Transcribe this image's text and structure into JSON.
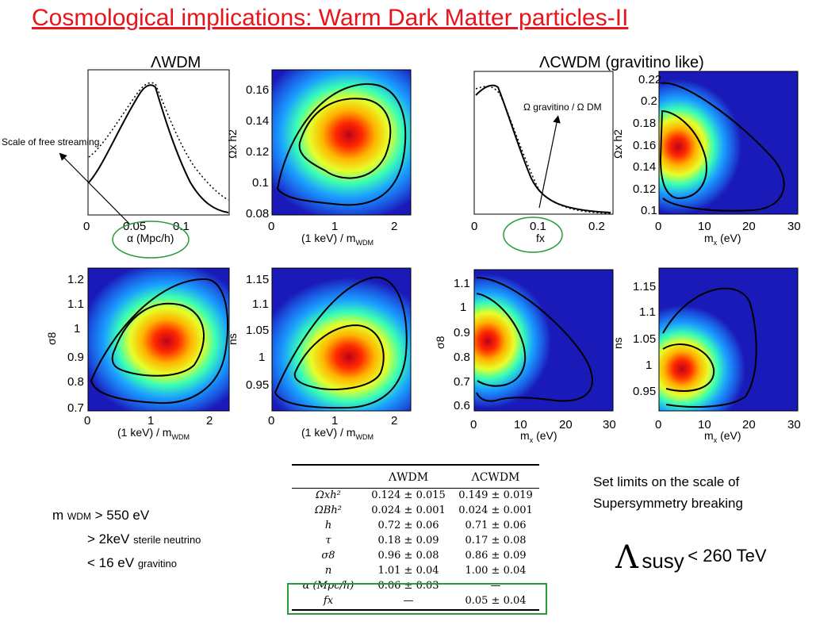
{
  "title": "Cosmological implications: Warm Dark Matter particles-II",
  "headers": {
    "lwdm": "ΛWDM",
    "lcwdm": "ΛCWDM (gravitino like)"
  },
  "annotations": {
    "free_streaming": "Scale of free streaming",
    "omega_ratio": "Ω gravitino / Ω DM"
  },
  "axes": {
    "alpha": "α (Mpc/h)",
    "kev_mwdm": "(1 keV) / m",
    "kev_mwdm_sub": "WDM",
    "omega_x_h2": "Ωx h2",
    "sigma8": "σ8",
    "ns": "ns",
    "fx": "fx",
    "mx": "m",
    "mx_sub": "x",
    "mx_unit": "(eV)"
  },
  "ticks": {
    "alpha_x": [
      "0",
      "0.05",
      "0.1"
    ],
    "kev_x": [
      "0",
      "1",
      "2"
    ],
    "omega_wdm_y": [
      "0.16",
      "0.14",
      "0.12",
      "0.1",
      "0.08"
    ],
    "sigma8_wdm_y": [
      "1.2",
      "1.1",
      "1",
      "0.9",
      "0.8",
      "0.7"
    ],
    "ns_wdm_y": [
      "1.15",
      "1.1",
      "1.05",
      "1",
      "0.95"
    ],
    "fx_x": [
      "0",
      "0.1",
      "0.2"
    ],
    "mx_x": [
      "0",
      "10",
      "20",
      "30"
    ],
    "omega_cwdm_y": [
      "0.22",
      "0.2",
      "0.18",
      "0.16",
      "0.14",
      "0.12",
      "0.1"
    ],
    "sigma8_cwdm_y": [
      "1.1",
      "1",
      "0.9",
      "0.8",
      "0.7",
      "0.6"
    ],
    "ns_cwdm_y": [
      "1.15",
      "1.1",
      "1.05",
      "1",
      "0.95"
    ]
  },
  "bounds": {
    "line1_label": "m",
    "line1_sub": "WDM",
    "line1_value": "> 550 eV",
    "line2_value": ">  2keV",
    "line2_note": "sterile neutrino",
    "line3_value": "< 16 eV",
    "line3_note": "gravitino"
  },
  "susy": {
    "limits_text_1": "Set limits on the scale of",
    "limits_text_2": "Supersymmetry breaking",
    "lambda": "Λ",
    "sub": "susy",
    "value": "< 260 TeV"
  },
  "table": {
    "headers": [
      "",
      "ΛWDM",
      "ΛCWDM"
    ],
    "rows": [
      [
        "Ωxh²",
        "0.124 ± 0.015",
        "0.149 ± 0.019"
      ],
      [
        "ΩBh²",
        "0.024 ± 0.001",
        "0.024 ± 0.001"
      ],
      [
        "h",
        "0.72 ± 0.06",
        "0.71 ± 0.06"
      ],
      [
        "τ",
        "0.18 ± 0.09",
        "0.17 ± 0.08"
      ],
      [
        "σ8",
        "0.96 ± 0.08",
        "0.86 ± 0.09"
      ],
      [
        "n",
        "1.01 ± 0.04",
        "1.00 ± 0.04"
      ],
      [
        "α (Mpc/h)",
        "0.06 ± 0.03",
        "—"
      ],
      [
        "fx",
        "—",
        "0.05 ± 0.04"
      ]
    ]
  },
  "colors": {
    "title": "#e8141b",
    "highlight": "#2a9a3a"
  }
}
